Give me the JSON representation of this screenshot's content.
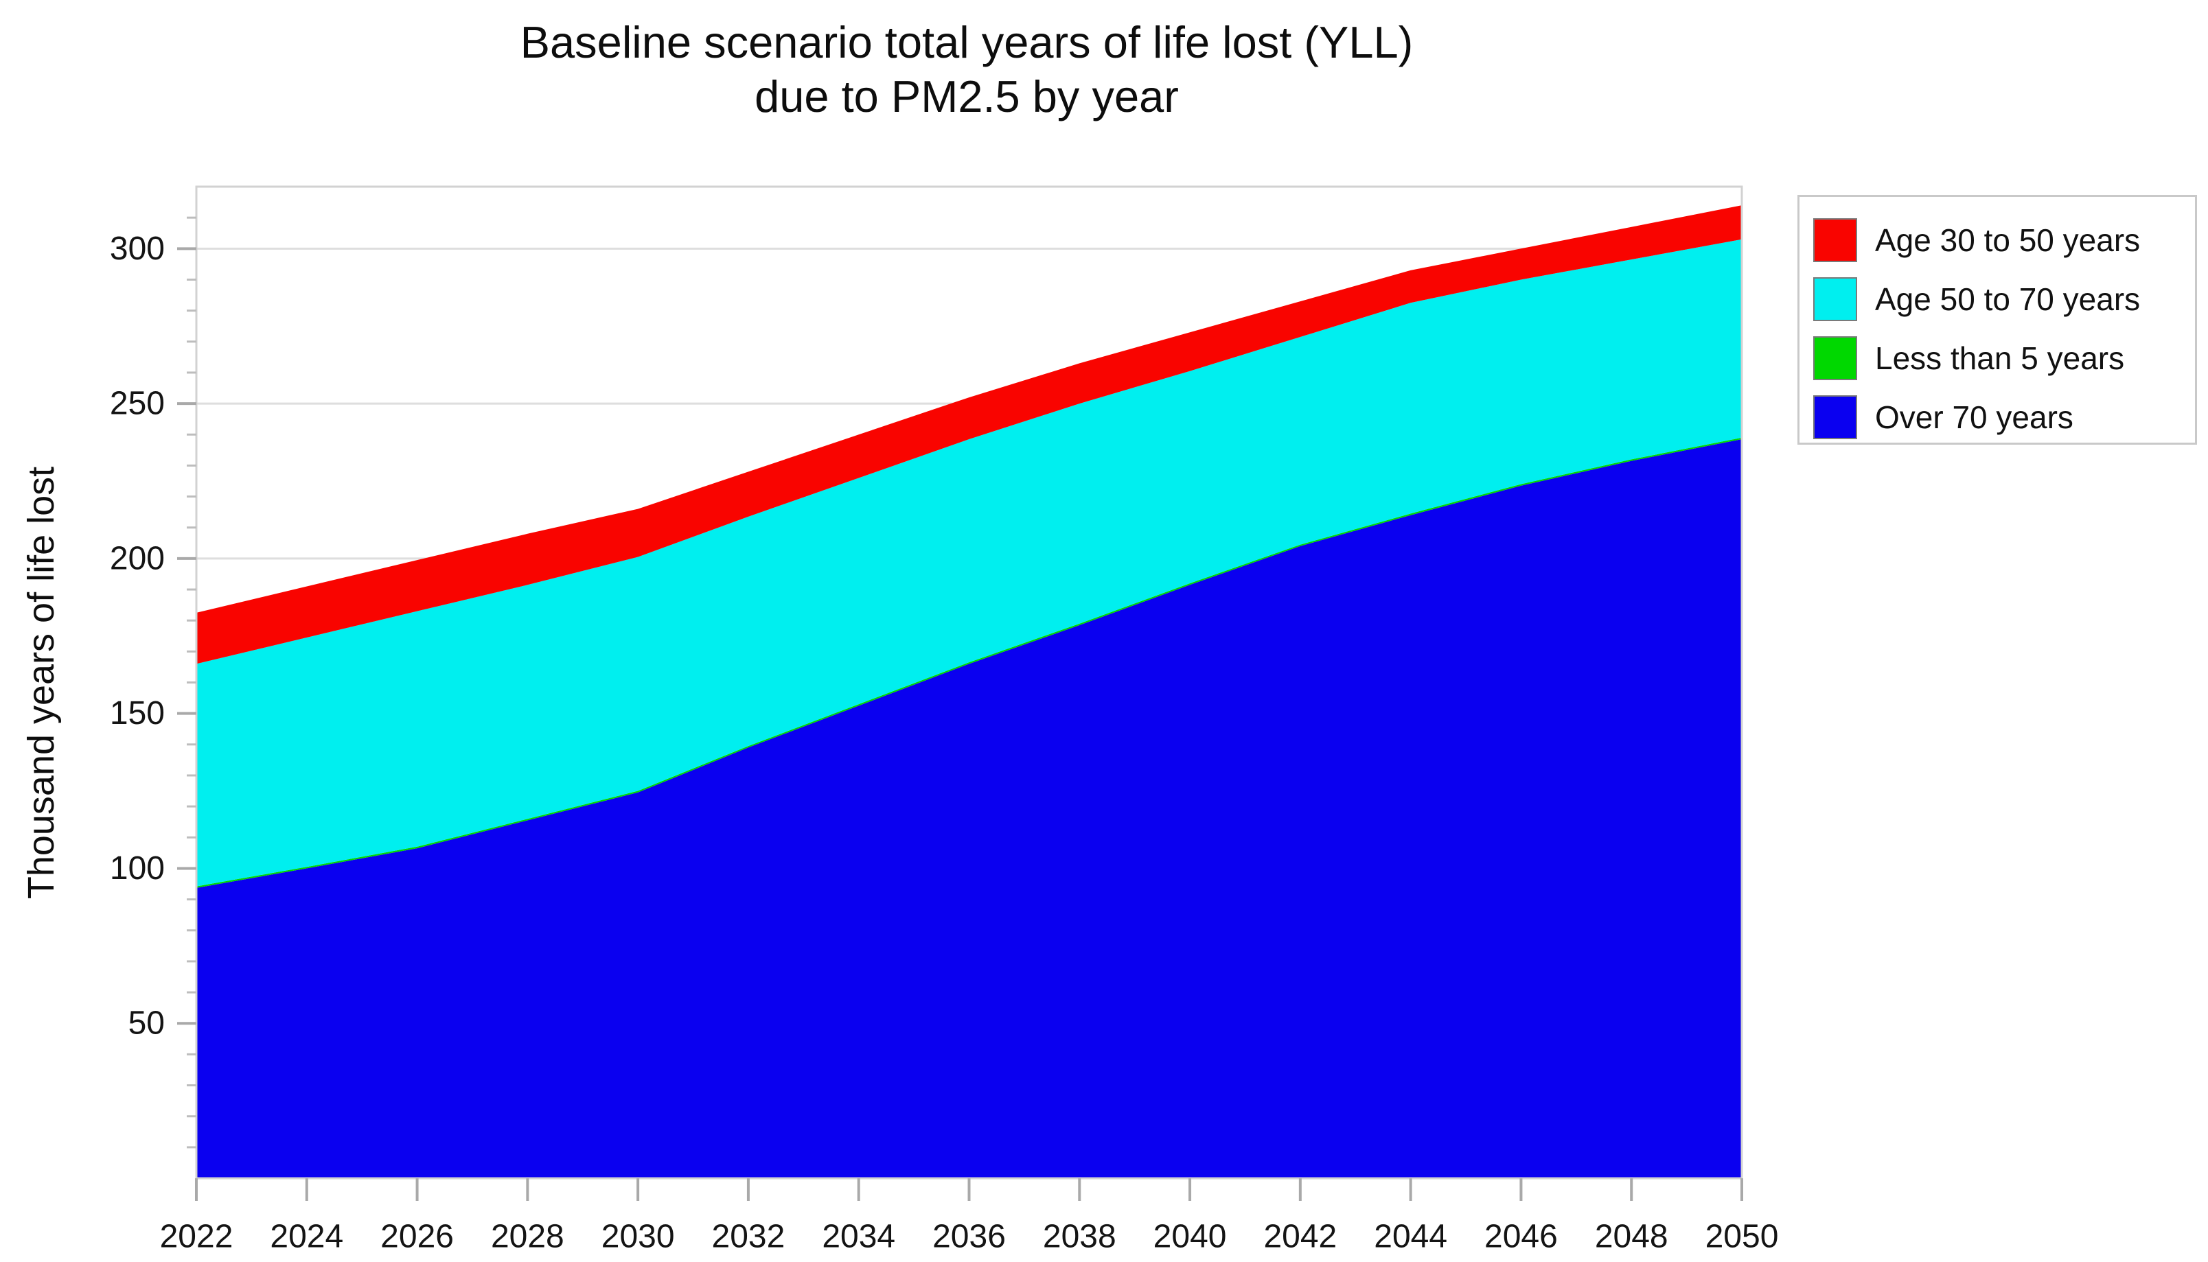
{
  "title": {
    "line1": "Baseline scenario total years of life lost (YLL)",
    "line2": "due to PM2.5 by year"
  },
  "y_axis": {
    "label": "Thousand years of life lost",
    "tick_labels": [
      50,
      100,
      150,
      200,
      250,
      300
    ],
    "minor_tick_step": 10,
    "range": [
      0,
      320
    ]
  },
  "x_axis": {
    "tick_labels": [
      2022,
      2024,
      2026,
      2028,
      2030,
      2032,
      2034,
      2036,
      2038,
      2040,
      2042,
      2044,
      2046,
      2048,
      2050
    ]
  },
  "legend": {
    "items": [
      {
        "label": "Age 30 to 50 years",
        "color": "#f90400"
      },
      {
        "label": "Age 50 to 70 years",
        "color": "#00efef"
      },
      {
        "label": "Less than 5 years",
        "color": "#00d800"
      },
      {
        "label": "Over 70 years",
        "color": "#0a00f0"
      }
    ]
  },
  "chart_data": {
    "type": "area",
    "stacked": true,
    "title": "Baseline scenario total years of life lost (YLL) due to PM2.5 by year",
    "xlabel": "",
    "ylabel": "Thousand years of life lost",
    "ylim": [
      0,
      320
    ],
    "grid": "horizontal",
    "legend_position": "upper right",
    "x": [
      2022,
      2024,
      2026,
      2028,
      2030,
      2032,
      2034,
      2036,
      2038,
      2040,
      2042,
      2044,
      2046,
      2048,
      2050
    ],
    "series": [
      {
        "name": "Over 70 years",
        "color": "#0a00f0",
        "values": [
          93.7,
          100.0,
          106.5,
          115.5,
          124.5,
          139.0,
          152.5,
          166.0,
          178.5,
          191.5,
          204.0,
          214.0,
          223.5,
          231.5,
          238.5
        ]
      },
      {
        "name": "Less than 5 years",
        "color": "#00d800",
        "values": [
          0.5,
          0.5,
          0.5,
          0.5,
          0.5,
          0.5,
          0.5,
          0.5,
          0.5,
          0.5,
          0.5,
          0.5,
          0.5,
          0.5,
          0.5
        ]
      },
      {
        "name": "Age 50 to 70 years",
        "color": "#00efef",
        "values": [
          71.8,
          74.0,
          76.0,
          75.5,
          75.5,
          74.0,
          73.0,
          72.0,
          71.0,
          68.5,
          67.0,
          68.0,
          66.0,
          64.5,
          64.0
        ]
      },
      {
        "name": "Age 30 to 50 years",
        "color": "#f90400",
        "values": [
          16.5,
          16.5,
          16.5,
          16.5,
          15.5,
          14.5,
          14.0,
          13.5,
          13.0,
          12.5,
          11.5,
          10.5,
          10.0,
          10.5,
          11.0
        ]
      }
    ],
    "stack_totals": [
      182.5,
      191.0,
      199.5,
      208.0,
      216.0,
      228.0,
      240.0,
      252.0,
      263.0,
      273.0,
      283.0,
      293.0,
      300.0,
      307.0,
      314.0
    ]
  }
}
